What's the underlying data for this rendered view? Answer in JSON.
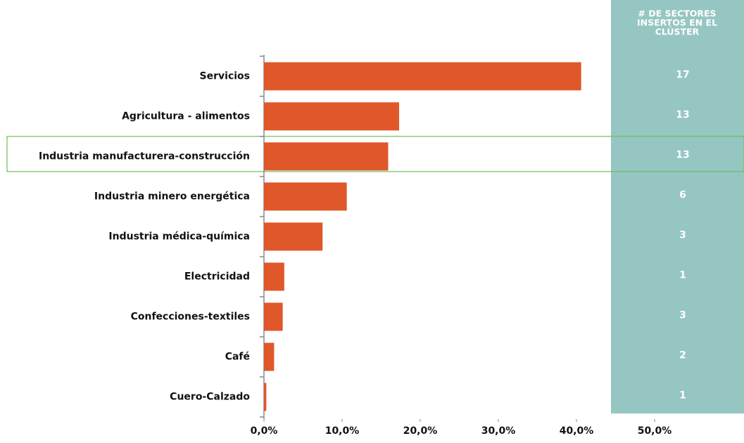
{
  "chart_data": {
    "type": "hbar",
    "categories": [
      "Servicios",
      "Agricultura - alimentos",
      "Industria manufacturera-construcción",
      "Industria minero energética",
      "Industria médica-química",
      "Electricidad",
      "Confecciones-textiles",
      "Café",
      "Cuero-Calzado"
    ],
    "values": [
      40.6,
      17.3,
      15.9,
      10.6,
      7.5,
      2.6,
      2.4,
      1.3,
      0.3
    ],
    "color": "#e0572a",
    "xlim": [
      0,
      50
    ],
    "xticks": [
      {
        "value": 0,
        "label": "0,0%"
      },
      {
        "value": 10,
        "label": "10,0%"
      },
      {
        "value": 20,
        "label": "20,0%"
      },
      {
        "value": 30,
        "label": "30,0%"
      },
      {
        "value": 40,
        "label": "40,0%"
      },
      {
        "value": 50,
        "label": "50,0%"
      }
    ],
    "grid": false,
    "table": {
      "header": [
        "# DE SECTORES",
        "INSERTOS EN EL",
        "CLÚSTER"
      ],
      "values": [
        17,
        13,
        13,
        6,
        3,
        1,
        3,
        2,
        1
      ],
      "color": "#96c6c2"
    }
  }
}
